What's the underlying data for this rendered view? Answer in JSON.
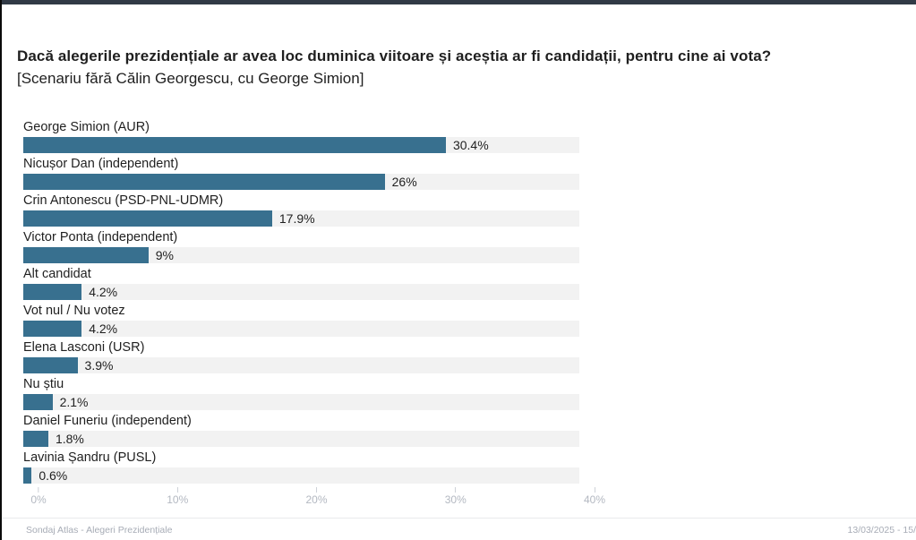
{
  "header": {
    "title": "Dacă alegerile prezidențiale ar avea loc duminica viitoare și aceștia ar fi candidații, pentru cine ai vota?",
    "subtitle": "[Scenariu fără Călin Georgescu, cu George Simion]"
  },
  "chart_data": {
    "type": "bar",
    "orientation": "horizontal",
    "categories": [
      "George Simion (AUR)",
      "Nicușor Dan (independent)",
      "Crin Antonescu (PSD-PNL-UDMR)",
      "Victor Ponta (independent)",
      "Alt candidat",
      "Vot nul / Nu votez",
      "Elena Lasconi (USR)",
      "Nu știu",
      "Daniel Funeriu (independent)",
      "Lavinia Șandru (PUSL)"
    ],
    "values": [
      30.4,
      26,
      17.9,
      9,
      4.2,
      4.2,
      3.9,
      2.1,
      1.8,
      0.6
    ],
    "value_labels": [
      "30.4%",
      "26%",
      "17.9%",
      "9%",
      "4.2%",
      "4.2%",
      "3.9%",
      "2.1%",
      "1.8%",
      "0.6%"
    ],
    "xlim": [
      0,
      40
    ],
    "x_tick_values": [
      0,
      10,
      20,
      30,
      40
    ],
    "x_tick_labels": [
      "0%",
      "10%",
      "20%",
      "30%",
      "40%"
    ],
    "grid": false,
    "legend": false,
    "bar_color": "#38708f",
    "track_color": "#f2f2f2",
    "topbar_color": "#313a46"
  },
  "footer": {
    "left": "Sondaj Atlas - Alegeri Prezidențiale",
    "right": "13/03/2025 - 15/"
  }
}
